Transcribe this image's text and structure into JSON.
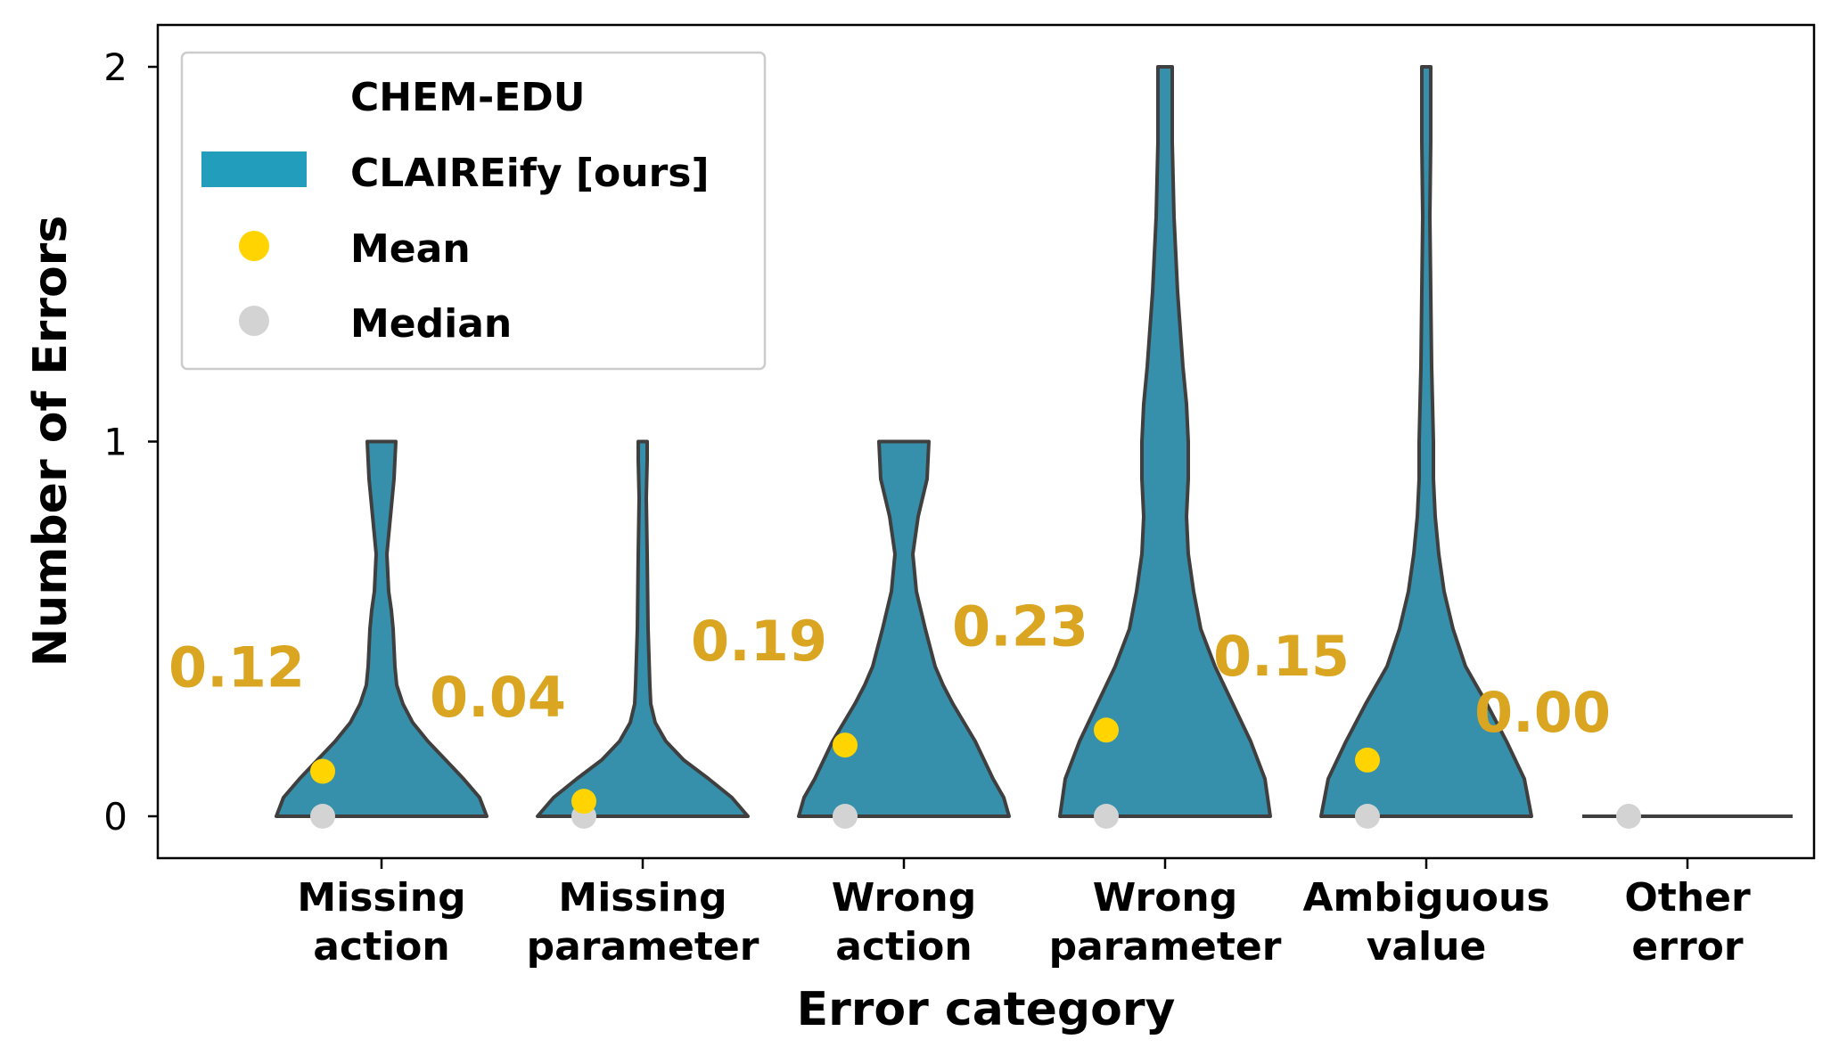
{
  "chart_data": {
    "type": "violin",
    "xlabel": "Error category",
    "ylabel": "Number of Errors",
    "ylim": [
      -0.1,
      2.1
    ],
    "yticks": [
      "0",
      "1",
      "2"
    ],
    "categories": [
      [
        "Missing",
        "action"
      ],
      [
        "Missing",
        "parameter"
      ],
      [
        "Wrong",
        "action"
      ],
      [
        "Wrong",
        "parameter"
      ],
      [
        "Ambiguous",
        "value"
      ],
      [
        "Other",
        "error"
      ]
    ],
    "series": [
      {
        "name": "CLAIREify [ours]",
        "means": [
          0.12,
          0.04,
          0.19,
          0.23,
          0.15,
          0.0
        ],
        "medians": [
          0,
          0,
          0,
          0,
          0,
          0
        ],
        "max": [
          1,
          1,
          1,
          2,
          2,
          0
        ],
        "mean_labels": [
          "0.12",
          "0.04",
          "0.19",
          "0.23",
          "0.15",
          "0.00"
        ]
      }
    ],
    "legend": {
      "title": "CHEM-EDU",
      "entries": [
        "CLAIREify [ours]",
        "Mean",
        "Median"
      ],
      "position": "top-left"
    },
    "colors": {
      "violin": "#3690AB",
      "legend_patch": "#229DBB",
      "mean": "#FFD400",
      "median": "#D3D3D3",
      "mean_label": "#DAA520",
      "outline": "#3F3F3F"
    }
  }
}
